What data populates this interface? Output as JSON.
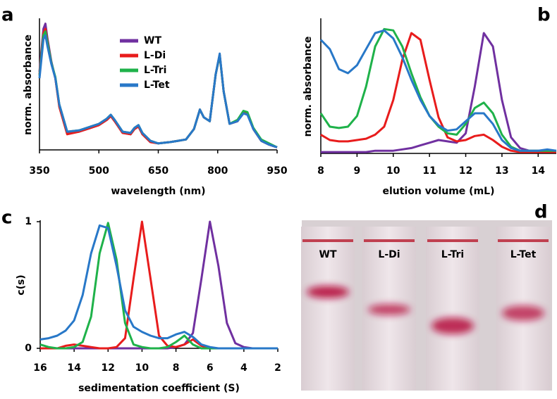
{
  "chart_data": [
    {
      "type": "line",
      "panel": "a",
      "xlabel": "wavelength (nm)",
      "ylabel": "norm. absorbance",
      "legend": "upper-center",
      "xlim": [
        350,
        950
      ],
      "xticks": [
        350,
        500,
        650,
        800,
        950
      ],
      "ylim": [
        0,
        1
      ],
      "x": [
        350,
        360,
        365,
        370,
        380,
        390,
        400,
        420,
        450,
        480,
        500,
        520,
        530,
        540,
        560,
        580,
        590,
        600,
        610,
        630,
        650,
        680,
        700,
        720,
        740,
        755,
        765,
        780,
        795,
        805,
        815,
        830,
        850,
        865,
        875,
        890,
        910,
        930,
        950
      ],
      "series": [
        {
          "name": "WT",
          "color": "#7030a0",
          "values": [
            0.6,
            0.93,
            0.97,
            0.86,
            0.68,
            0.55,
            0.34,
            0.13,
            0.14,
            0.17,
            0.19,
            0.23,
            0.26,
            0.22,
            0.13,
            0.12,
            0.16,
            0.18,
            0.12,
            0.06,
            0.05,
            0.06,
            0.07,
            0.08,
            0.16,
            0.31,
            0.25,
            0.22,
            0.58,
            0.73,
            0.45,
            0.2,
            0.22,
            0.29,
            0.28,
            0.16,
            0.07,
            0.04,
            0.02
          ]
        },
        {
          "name": "L-Di",
          "color": "#e81c1c",
          "values": [
            0.58,
            0.9,
            0.93,
            0.84,
            0.67,
            0.55,
            0.33,
            0.12,
            0.14,
            0.17,
            0.19,
            0.23,
            0.26,
            0.22,
            0.13,
            0.12,
            0.16,
            0.18,
            0.12,
            0.06,
            0.05,
            0.06,
            0.07,
            0.08,
            0.16,
            0.31,
            0.25,
            0.22,
            0.58,
            0.73,
            0.45,
            0.2,
            0.22,
            0.29,
            0.28,
            0.16,
            0.07,
            0.04,
            0.02
          ]
        },
        {
          "name": "L-Tri",
          "color": "#1fb24a",
          "values": [
            0.57,
            0.88,
            0.91,
            0.83,
            0.67,
            0.56,
            0.35,
            0.14,
            0.15,
            0.18,
            0.2,
            0.24,
            0.27,
            0.23,
            0.14,
            0.13,
            0.17,
            0.19,
            0.13,
            0.07,
            0.05,
            0.06,
            0.07,
            0.08,
            0.16,
            0.31,
            0.25,
            0.22,
            0.58,
            0.73,
            0.45,
            0.2,
            0.23,
            0.3,
            0.29,
            0.17,
            0.08,
            0.05,
            0.02
          ]
        },
        {
          "name": "L-Tet",
          "color": "#2878c8",
          "values": [
            0.55,
            0.85,
            0.88,
            0.8,
            0.66,
            0.55,
            0.35,
            0.14,
            0.15,
            0.18,
            0.2,
            0.24,
            0.27,
            0.23,
            0.14,
            0.13,
            0.17,
            0.19,
            0.13,
            0.07,
            0.05,
            0.06,
            0.07,
            0.08,
            0.16,
            0.31,
            0.25,
            0.22,
            0.58,
            0.74,
            0.45,
            0.2,
            0.22,
            0.28,
            0.27,
            0.16,
            0.07,
            0.04,
            0.02
          ]
        }
      ]
    },
    {
      "type": "line",
      "panel": "b",
      "xlabel": "elution volume (mL)",
      "ylabel": "norm. absorbance",
      "xlim": [
        8,
        14.5
      ],
      "xticks": [
        8,
        9,
        10,
        11,
        12,
        13,
        14
      ],
      "ylim": [
        0,
        1
      ],
      "x": [
        8,
        8.25,
        8.5,
        8.75,
        9,
        9.25,
        9.5,
        9.75,
        10,
        10.25,
        10.5,
        10.75,
        11,
        11.25,
        11.5,
        11.75,
        12,
        12.25,
        12.5,
        12.75,
        13,
        13.25,
        13.5,
        13.75,
        14,
        14.25,
        14.5
      ],
      "series": [
        {
          "color": "#7030a0",
          "values": [
            0.01,
            0.01,
            0.01,
            0.01,
            0.01,
            0.01,
            0.02,
            0.02,
            0.02,
            0.03,
            0.04,
            0.06,
            0.08,
            0.1,
            0.09,
            0.08,
            0.15,
            0.5,
            0.9,
            0.8,
            0.4,
            0.12,
            0.04,
            0.02,
            0.02,
            0.02,
            0.01
          ]
        },
        {
          "color": "#e81c1c",
          "values": [
            0.14,
            0.1,
            0.09,
            0.09,
            0.1,
            0.11,
            0.14,
            0.2,
            0.4,
            0.7,
            0.9,
            0.85,
            0.55,
            0.27,
            0.12,
            0.09,
            0.1,
            0.13,
            0.14,
            0.1,
            0.05,
            0.02,
            0.01,
            0.01,
            0.01,
            0.01,
            0.01
          ]
        },
        {
          "color": "#1fb24a",
          "values": [
            0.3,
            0.2,
            0.19,
            0.2,
            0.28,
            0.5,
            0.8,
            0.93,
            0.92,
            0.8,
            0.6,
            0.42,
            0.28,
            0.2,
            0.15,
            0.14,
            0.22,
            0.34,
            0.38,
            0.3,
            0.14,
            0.05,
            0.02,
            0.02,
            0.02,
            0.02,
            0.02
          ]
        },
        {
          "color": "#2878c8",
          "values": [
            0.85,
            0.78,
            0.63,
            0.6,
            0.66,
            0.78,
            0.9,
            0.92,
            0.86,
            0.72,
            0.55,
            0.4,
            0.28,
            0.21,
            0.17,
            0.18,
            0.24,
            0.3,
            0.3,
            0.22,
            0.1,
            0.04,
            0.02,
            0.02,
            0.02,
            0.03,
            0.02
          ]
        }
      ]
    },
    {
      "type": "line",
      "panel": "c",
      "xlabel": "sedimentation coefficient (S)",
      "ylabel": "c(s)",
      "xlim": [
        16,
        2
      ],
      "xticks": [
        16,
        14,
        12,
        10,
        8,
        6,
        4,
        2
      ],
      "ylim": [
        0,
        1
      ],
      "yticks": [
        0,
        1
      ],
      "x": [
        16,
        15.5,
        15,
        14.5,
        14,
        13.5,
        13,
        12.5,
        12,
        11.5,
        11,
        10.5,
        10,
        9.5,
        9,
        8.5,
        8,
        7.5,
        7,
        6.5,
        6,
        5.5,
        5,
        4.5,
        4,
        3.5,
        3,
        2.5,
        2
      ],
      "series": [
        {
          "color": "#7030a0",
          "values": [
            0,
            0,
            0,
            0,
            0,
            0,
            0,
            0,
            0,
            0,
            0,
            0,
            0,
            0,
            0,
            0,
            0.01,
            0.03,
            0.12,
            0.55,
            1.0,
            0.65,
            0.2,
            0.04,
            0.01,
            0,
            0,
            0,
            0
          ]
        },
        {
          "color": "#e81c1c",
          "values": [
            0,
            0,
            0,
            0.02,
            0.03,
            0.02,
            0.01,
            0,
            0,
            0.01,
            0.08,
            0.55,
            1.0,
            0.55,
            0.1,
            0.02,
            0.01,
            0.03,
            0.07,
            0.02,
            0,
            0,
            0,
            0,
            0,
            0,
            0,
            0,
            0
          ]
        },
        {
          "color": "#1fb24a",
          "values": [
            0.03,
            0.01,
            0,
            0,
            0.01,
            0.05,
            0.25,
            0.75,
            0.99,
            0.7,
            0.2,
            0.03,
            0.01,
            0,
            0,
            0.01,
            0.05,
            0.1,
            0.03,
            0,
            0,
            0,
            0,
            0,
            0,
            0,
            0,
            0,
            0
          ]
        },
        {
          "color": "#2878c8",
          "values": [
            0.07,
            0.08,
            0.1,
            0.14,
            0.22,
            0.42,
            0.75,
            0.97,
            0.95,
            0.65,
            0.3,
            0.17,
            0.13,
            0.1,
            0.08,
            0.08,
            0.11,
            0.13,
            0.09,
            0.03,
            0.01,
            0,
            0,
            0,
            0,
            0,
            0,
            0,
            0
          ]
        }
      ]
    }
  ],
  "photo": {
    "panel": "d",
    "lanes": [
      "WT",
      "L-Di",
      "L-Tri",
      "L-Tet"
    ]
  }
}
